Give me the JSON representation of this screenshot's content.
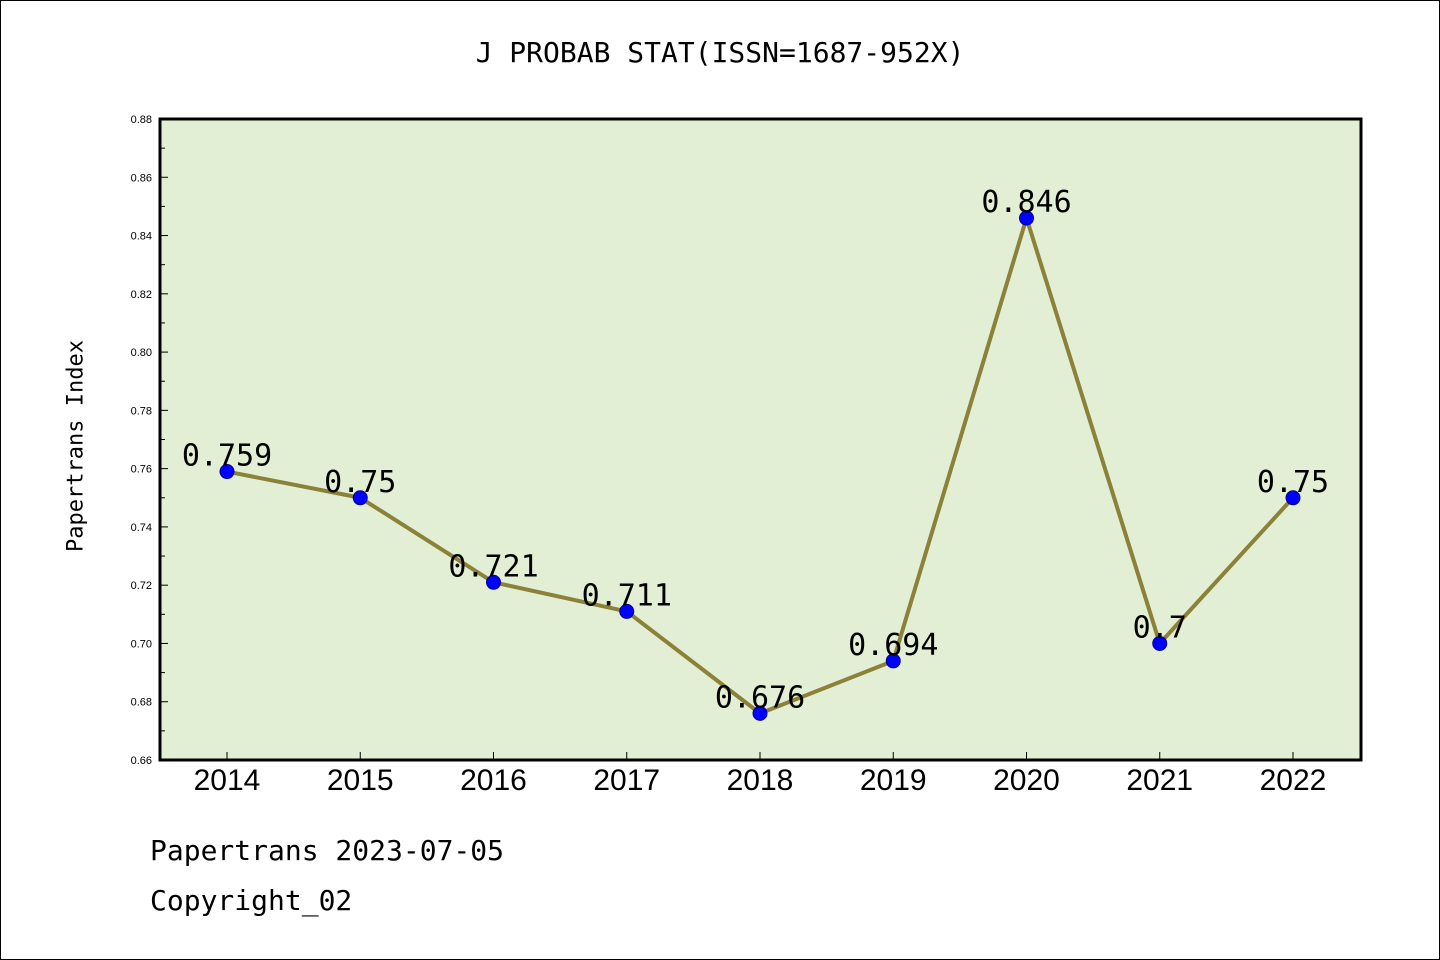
{
  "colors": {
    "plot_background": "#e2efd4",
    "line": "#8b8138",
    "marker": "#0000ff",
    "marker_edge": "#00008b"
  },
  "chart_data": {
    "type": "line",
    "title": "J PROBAB STAT(ISSN=1687-952X)",
    "xlabel": "",
    "ylabel": "Papertrans Index",
    "categories": [
      "2014",
      "2015",
      "2016",
      "2017",
      "2018",
      "2019",
      "2020",
      "2021",
      "2022"
    ],
    "series": [
      {
        "values": [
          0.759,
          0.75,
          0.721,
          0.711,
          0.676,
          0.694,
          0.846,
          0.7,
          0.75
        ],
        "labels": [
          "0.759",
          "0.75",
          "0.721",
          "0.711",
          "0.676",
          "0.694",
          "0.846",
          "0.7",
          "0.75"
        ]
      }
    ],
    "ylim": [
      0.66,
      0.88
    ],
    "yticks": [
      "0.66",
      "0.68",
      "0.70",
      "0.72",
      "0.74",
      "0.76",
      "0.78",
      "0.80",
      "0.82",
      "0.84",
      "0.86",
      "0.88"
    ],
    "grid": false,
    "legend": "none"
  },
  "footer": {
    "date_line": "Papertrans 2023-07-05",
    "copyright_line": "Copyright_02"
  }
}
